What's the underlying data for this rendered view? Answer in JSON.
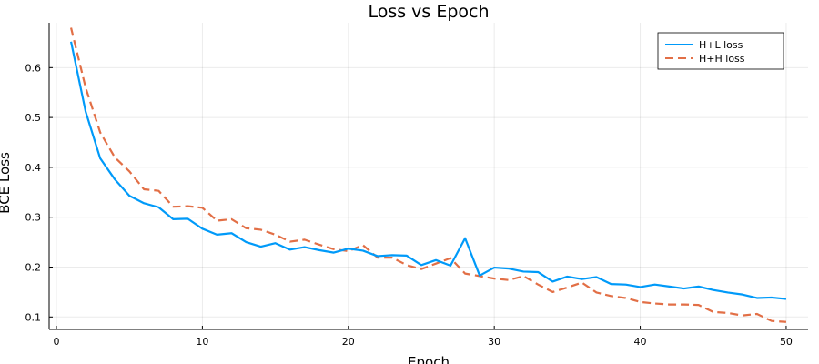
{
  "chart_data": {
    "type": "line",
    "title": "Loss vs Epoch",
    "xlabel": "Epoch",
    "ylabel": "BCE Loss",
    "xlim": [
      -0.5,
      51.5
    ],
    "ylim": [
      0.075,
      0.69
    ],
    "xticks": [
      0,
      10,
      20,
      30,
      40,
      50
    ],
    "yticks": [
      0.1,
      0.2,
      0.3,
      0.4,
      0.5,
      0.6
    ],
    "ytick_labels": [
      "0.1",
      "0.2",
      "0.3",
      "0.4",
      "0.5",
      "0.6"
    ],
    "grid": true,
    "legend_position": "top-right",
    "x": [
      1,
      2,
      3,
      4,
      5,
      6,
      7,
      8,
      9,
      10,
      11,
      12,
      13,
      14,
      15,
      16,
      17,
      18,
      19,
      20,
      21,
      22,
      23,
      24,
      25,
      26,
      27,
      28,
      29,
      30,
      31,
      32,
      33,
      34,
      35,
      36,
      37,
      38,
      39,
      40,
      41,
      42,
      43,
      44,
      45,
      46,
      47,
      48,
      49,
      50
    ],
    "series": [
      {
        "name": "H+L loss",
        "color": "#009af9",
        "style": "solid",
        "values": [
          0.652,
          0.512,
          0.418,
          0.376,
          0.343,
          0.328,
          0.32,
          0.296,
          0.297,
          0.277,
          0.265,
          0.268,
          0.25,
          0.241,
          0.248,
          0.235,
          0.24,
          0.234,
          0.229,
          0.237,
          0.233,
          0.222,
          0.224,
          0.223,
          0.204,
          0.214,
          0.203,
          0.258,
          0.183,
          0.199,
          0.197,
          0.191,
          0.19,
          0.171,
          0.181,
          0.176,
          0.18,
          0.166,
          0.165,
          0.16,
          0.165,
          0.161,
          0.157,
          0.161,
          0.154,
          0.149,
          0.145,
          0.138,
          0.139,
          0.136
        ]
      },
      {
        "name": "H+H loss",
        "color": "#e26f46",
        "style": "dash",
        "values": [
          0.68,
          0.56,
          0.47,
          0.42,
          0.392,
          0.356,
          0.353,
          0.321,
          0.322,
          0.319,
          0.293,
          0.296,
          0.278,
          0.275,
          0.265,
          0.251,
          0.255,
          0.245,
          0.236,
          0.232,
          0.244,
          0.219,
          0.219,
          0.204,
          0.196,
          0.207,
          0.218,
          0.187,
          0.182,
          0.177,
          0.174,
          0.182,
          0.165,
          0.15,
          0.159,
          0.169,
          0.149,
          0.142,
          0.138,
          0.13,
          0.127,
          0.125,
          0.125,
          0.124,
          0.11,
          0.108,
          0.103,
          0.106,
          0.092,
          0.09
        ]
      }
    ]
  }
}
